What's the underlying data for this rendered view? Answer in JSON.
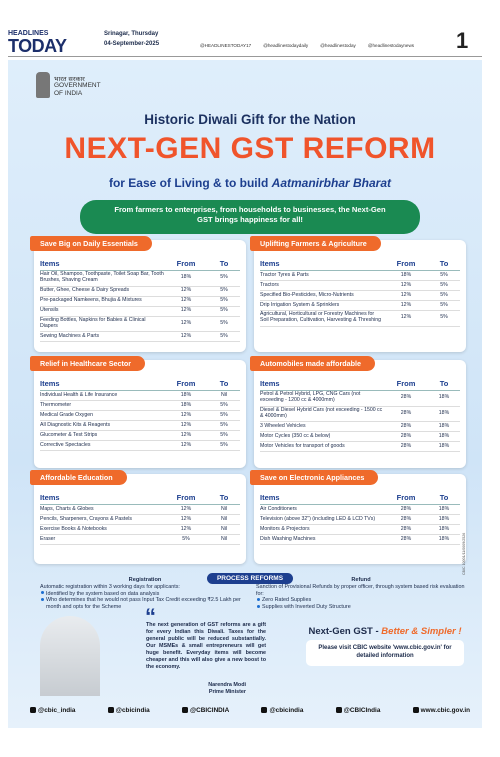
{
  "masthead": {
    "name_top": "HEADLINES",
    "name_bottom": "TODAY",
    "city_day": "Srinagar, Thursday",
    "date": "04-September-2025",
    "socials": [
      "@HEADLINESTODAY17",
      "@headlinestodaydaily",
      "@headlinestoday",
      "@headlinestodaynews"
    ],
    "page": "1"
  },
  "ad": {
    "emblem_lines": [
      "भारत सरकार",
      "GOVERNMENT",
      "OF INDIA"
    ],
    "kicker": "Historic Diwali Gift for the Nation",
    "title": "NEXT-GEN GST REFORM",
    "subtitle": "for Ease of Living & to build",
    "subtitle_em": "Aatmanirbhar Bharat",
    "banner": "From farmers to enterprises, from households to businesses, the Next-Gen GST brings happiness for all!",
    "columns": [
      "Items",
      "From",
      "To"
    ],
    "sections": [
      {
        "title": "Save Big on Daily Essentials",
        "rows": [
          [
            "Hair Oil, Shampoo, Toothpaste, Toilet Soap Bar, Tooth Brushes, Shaving Cream",
            "18%",
            "5%"
          ],
          [
            "Butter, Ghee, Cheese & Dairy Spreads",
            "12%",
            "5%"
          ],
          [
            "Pre-packaged Namkeens, Bhujia & Mixtures",
            "12%",
            "5%"
          ],
          [
            "Utensils",
            "12%",
            "5%"
          ],
          [
            "Feeding Bottles, Napkins for Babies & Clinical Diapers",
            "12%",
            "5%"
          ],
          [
            "Sewing Machines & Parts",
            "12%",
            "5%"
          ]
        ]
      },
      {
        "title": "Uplifting Farmers & Agriculture",
        "rows": [
          [
            "Tractor Tyres & Parts",
            "18%",
            "5%"
          ],
          [
            "Tractors",
            "12%",
            "5%"
          ],
          [
            "Specified Bio-Pesticides, Micro-Nutrients",
            "12%",
            "5%"
          ],
          [
            "Drip Irrigation System & Sprinklers",
            "12%",
            "5%"
          ],
          [
            "Agricultural, Horticultural or Forestry Machines for Soil Preparation, Cultivation, Harvesting & Threshing",
            "12%",
            "5%"
          ]
        ]
      },
      {
        "title": "Relief in Healthcare Sector",
        "rows": [
          [
            "Individual Health & Life Insurance",
            "18%",
            "Nil"
          ],
          [
            "Thermometer",
            "18%",
            "5%"
          ],
          [
            "Medical Grade Oxygen",
            "12%",
            "5%"
          ],
          [
            "All Diagnostic Kits & Reagents",
            "12%",
            "5%"
          ],
          [
            "Glucometer & Test Strips",
            "12%",
            "5%"
          ],
          [
            "Corrective Spectacles",
            "12%",
            "5%"
          ]
        ]
      },
      {
        "title": "Automobiles made affordable",
        "rows": [
          [
            "Petrol & Petrol Hybrid, LPG, CNG Cars (not exceeding - 1200 cc & 4000mm)",
            "28%",
            "18%"
          ],
          [
            "Diesel & Diesel Hybrid Cars (not exceeding - 1500 cc & 4000mm)",
            "28%",
            "18%"
          ],
          [
            "3 Wheeled Vehicles",
            "28%",
            "18%"
          ],
          [
            "Motor Cycles (350 cc & below)",
            "28%",
            "18%"
          ],
          [
            "Motor Vehicles for transport of goods",
            "28%",
            "18%"
          ]
        ]
      },
      {
        "title": "Affordable Education",
        "rows": [
          [
            "Maps, Charts & Globes",
            "12%",
            "Nil"
          ],
          [
            "Pencils, Sharpeners, Crayons & Pastels",
            "12%",
            "Nil"
          ],
          [
            "Exercise Books & Notebooks",
            "12%",
            "Nil"
          ],
          [
            "Eraser",
            "5%",
            "Nil"
          ]
        ]
      },
      {
        "title": "Save on Electronic Appliances",
        "rows": [
          [
            "Air Conditioners",
            "28%",
            "18%"
          ],
          [
            "Television (above 32\") (including LED & LCD TVs)",
            "28%",
            "18%"
          ],
          [
            "Monitors & Projectors",
            "28%",
            "18%"
          ],
          [
            "Dish Washing Machines",
            "28%",
            "18%"
          ]
        ]
      }
    ],
    "process": {
      "title": "PROCESS REFORMS",
      "registration": {
        "heading": "Registration",
        "intro": "Automatic registration within 3 working days for applicants:",
        "bullets": [
          "Identified by the system based on data analysis",
          "Who determines that he would not pass Input Tax Credit exceeding ₹2.5 Lakh per month and opts for the Scheme"
        ]
      },
      "refund": {
        "heading": "Refund",
        "intro": "Sanction of Provisional Refunds by proper officer, through system based risk evaluation for:",
        "bullets": [
          "Zero Rated Supplies",
          "Supplies with Inverted Duty Structure"
        ]
      }
    },
    "quote": {
      "text": "The next generation of GST reforms are a gift for every Indian this Diwali. Taxes for the general public will be reduced substantially. Our MSMEs & small entrepreneurs will get huge benefit. Everyday items will become cheaper and this will also give a new boost to the economy.",
      "author": "Narendra Modi",
      "role": "Prime Minister"
    },
    "slogan": "Next-Gen GST -",
    "slogan_em": "Better & Simpler !",
    "visit": "Please visit CBIC website 'www.cbic.gov.in' for detailed information",
    "code": "CBIC 10001/11/0009/2526",
    "footer": [
      "@cbic_india",
      "@cbicindia",
      "@CBICINDIA",
      "@cbicindia",
      "@CBICIndia",
      "www.cbic.gov.in"
    ]
  }
}
